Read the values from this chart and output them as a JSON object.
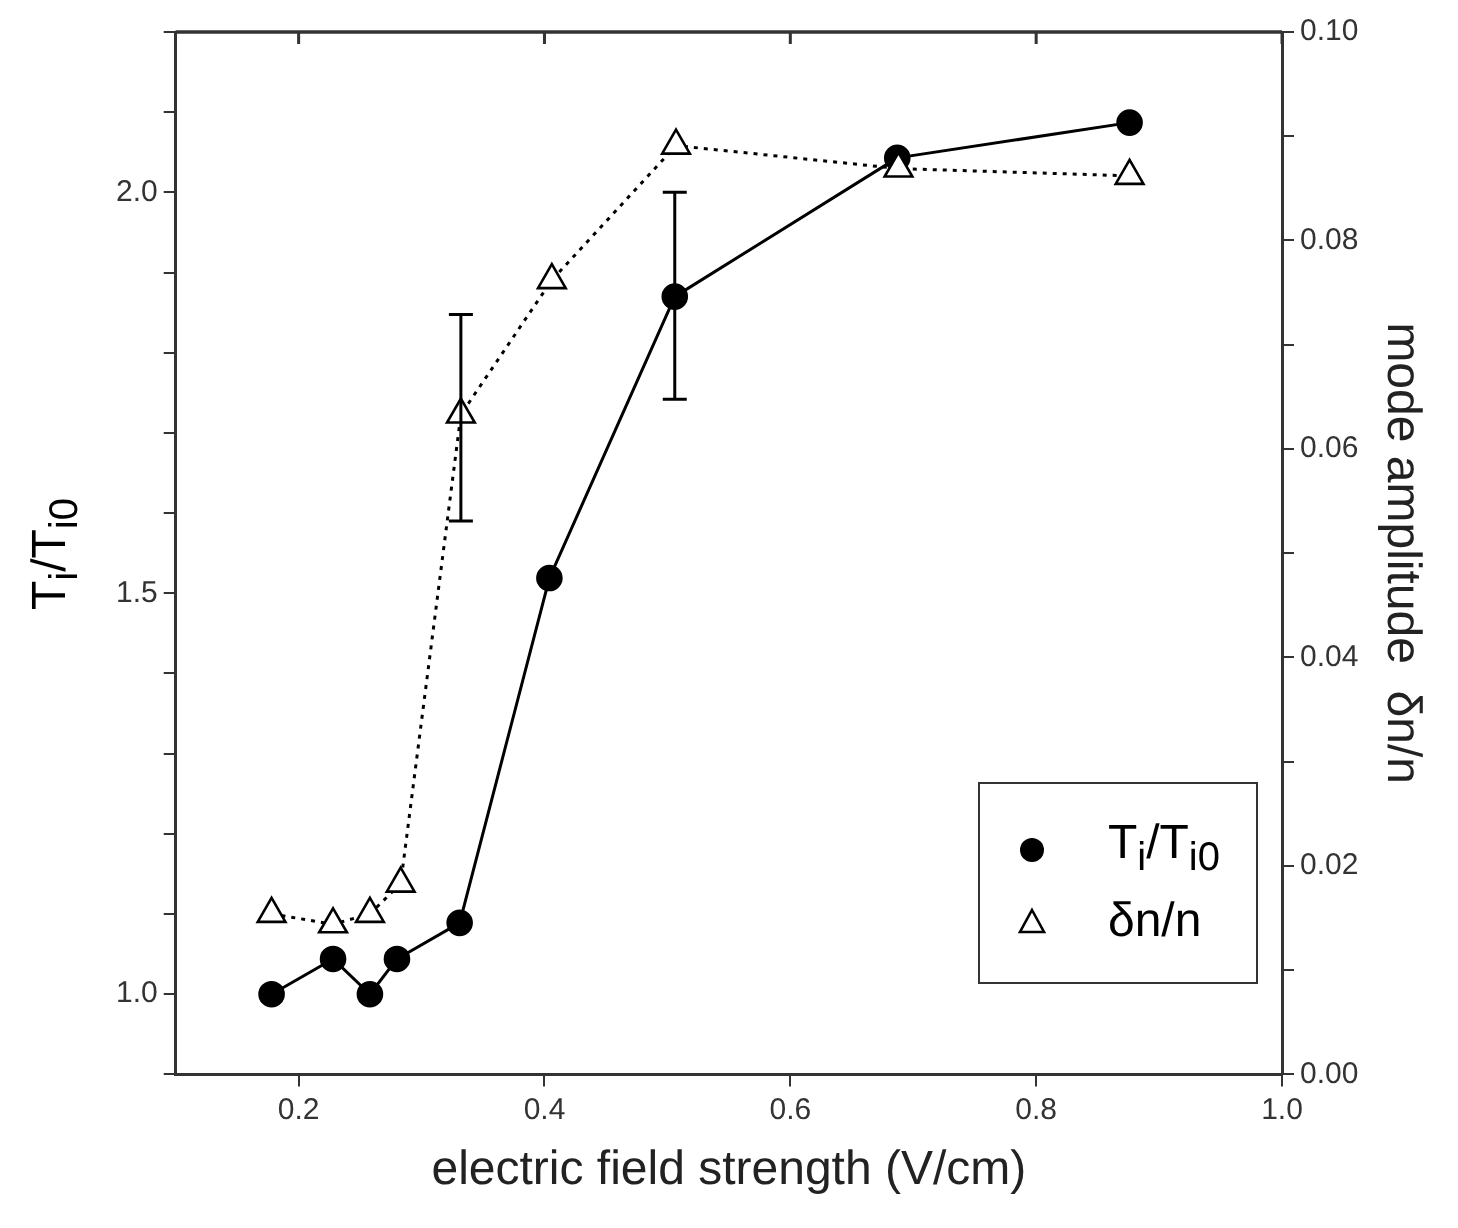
{
  "chart_data": {
    "type": "line",
    "xlabel": "electric field strength (V/cm)",
    "ylabel": "T$_{i}$/T$_{i0}$",
    "y2label": "mode amplitude  δn/n",
    "xlim": [
      0.1,
      1.0
    ],
    "xticks": [
      0.2,
      0.4,
      0.6,
      0.8,
      {
        "value": 1.0,
        "label": "1.0"
      }
    ],
    "ylim": [
      0.9,
      2.2
    ],
    "yticks": [
      {
        "value": 0.9,
        "label": null
      },
      {
        "value": 1.0,
        "label": "1.0"
      },
      {
        "value": 1.1,
        "label": null
      },
      {
        "value": 1.2,
        "label": null
      },
      {
        "value": 1.3,
        "label": null
      },
      {
        "value": 1.4,
        "label": null
      },
      1.5,
      {
        "value": 1.6,
        "label": null
      },
      {
        "value": 1.7,
        "label": null
      },
      {
        "value": 1.8,
        "label": null
      },
      {
        "value": 1.9,
        "label": null
      },
      {
        "value": 2.0,
        "label": "2.0"
      },
      {
        "value": 2.1,
        "label": null
      },
      {
        "value": 2.2,
        "label": null
      }
    ],
    "y2lim": [
      0,
      0.1
    ],
    "y2ticks": [
      {
        "value": 0,
        "label": "0.00"
      },
      {
        "value": 0.01,
        "label": null
      },
      {
        "value": 0.02,
        "label": "0.02"
      },
      {
        "value": 0.03,
        "label": null
      },
      {
        "value": 0.04,
        "label": "0.04"
      },
      {
        "value": 0.05,
        "label": null
      },
      {
        "value": 0.06,
        "label": "0.06"
      },
      {
        "value": 0.07,
        "label": null
      },
      {
        "value": 0.08,
        "label": "0.08"
      },
      {
        "value": 0.09,
        "label": null
      },
      {
        "value": 0.1,
        "label": "0.10"
      }
    ],
    "grid": false,
    "legend": "bottom right",
    "series": [
      {
        "name": "T$_{i}$/T$_{i0}$",
        "color": "#000000",
        "marker": "circle",
        "line_style": "solid",
        "x": [
          0.178,
          0.228,
          0.258,
          0.28,
          0.331,
          0.404,
          0.506,
          0.687,
          0.876
        ],
        "values": [
          1.0,
          1.044,
          1.0,
          1.044,
          1.089,
          1.519,
          1.87,
          2.043,
          2.087
        ],
        "errors": [
          null,
          null,
          null,
          null,
          null,
          null,
          [
            1.742,
            2.0
          ],
          null,
          null
        ]
      },
      {
        "name": "δn/n",
        "color": "#000000",
        "marker": "triangle",
        "line_style": "dotted",
        "axis": "y2",
        "x": [
          0.178,
          0.228,
          0.258,
          0.283,
          0.332,
          0.406,
          0.507,
          0.688,
          0.876
        ],
        "values": [
          0.0154,
          0.0144,
          0.0154,
          0.0183,
          0.0633,
          0.0762,
          0.0891,
          0.0869,
          0.0862
        ],
        "errors": [
          null,
          null,
          null,
          null,
          [
            0.0531,
            0.0729
          ],
          null,
          null,
          null,
          null
        ]
      }
    ]
  }
}
